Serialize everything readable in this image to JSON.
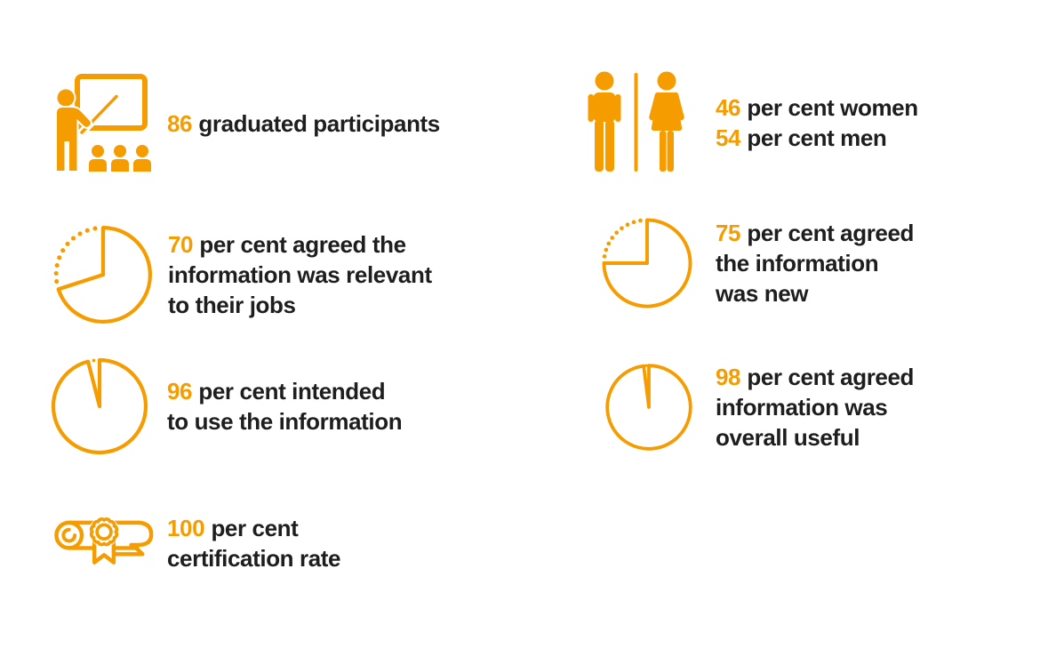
{
  "colors": {
    "accent": "#F59C00",
    "text": "#1E1E1E",
    "background": "#FFFFFF"
  },
  "stats": [
    {
      "id": "graduated",
      "icon": "classroom-icon",
      "lines": [
        {
          "highlight": "86",
          "text": "graduated participants"
        }
      ]
    },
    {
      "id": "gender",
      "icon": "male-female-icon",
      "lines": [
        {
          "highlight": "46",
          "text": "per cent women"
        },
        {
          "highlight": "54",
          "text": "per cent men"
        }
      ]
    },
    {
      "id": "relevant",
      "icon": "pie-chart-icon",
      "percent": 70,
      "lines": [
        {
          "highlight": "70",
          "text": "per cent agreed the"
        },
        {
          "text": "information was relevant"
        },
        {
          "text": "to their jobs"
        }
      ]
    },
    {
      "id": "new-information",
      "icon": "pie-chart-icon",
      "percent": 75,
      "lines": [
        {
          "highlight": "75",
          "text": "per cent agreed"
        },
        {
          "text": "the information"
        },
        {
          "text": "was new"
        }
      ]
    },
    {
      "id": "intend-to-use",
      "icon": "pie-chart-icon",
      "percent": 96,
      "lines": [
        {
          "highlight": "96",
          "text": "per cent intended"
        },
        {
          "text": "to use the information"
        }
      ]
    },
    {
      "id": "overall-useful",
      "icon": "pie-chart-icon",
      "percent": 98,
      "lines": [
        {
          "highlight": "98",
          "text": "per cent agreed"
        },
        {
          "text": "information was"
        },
        {
          "text": "overall useful"
        }
      ]
    },
    {
      "id": "certification",
      "icon": "certificate-icon",
      "lines": [
        {
          "highlight": "100",
          "text": "per cent"
        },
        {
          "text": "certification rate"
        }
      ]
    }
  ],
  "chart_data": [
    {
      "type": "pie",
      "title": "70 per cent agreed the information was relevant to their jobs",
      "values": [
        70,
        30
      ]
    },
    {
      "type": "pie",
      "title": "75 per cent agreed the information was new",
      "values": [
        75,
        25
      ]
    },
    {
      "type": "pie",
      "title": "96 per cent intended to use the information",
      "values": [
        96,
        4
      ]
    },
    {
      "type": "pie",
      "title": "98 per cent agreed information was overall useful",
      "values": [
        98,
        2
      ]
    },
    {
      "type": "table",
      "title": "Training outcomes",
      "rows": [
        [
          "Graduated participants",
          "86"
        ],
        [
          "Women",
          "46 per cent"
        ],
        [
          "Men",
          "54 per cent"
        ],
        [
          "Agreed the information was relevant to their jobs",
          "70 per cent"
        ],
        [
          "Agreed the information was new",
          "75 per cent"
        ],
        [
          "Intended to use the information",
          "96 per cent"
        ],
        [
          "Agreed information was overall useful",
          "98 per cent"
        ],
        [
          "Certification rate",
          "100 per cent"
        ]
      ]
    }
  ]
}
